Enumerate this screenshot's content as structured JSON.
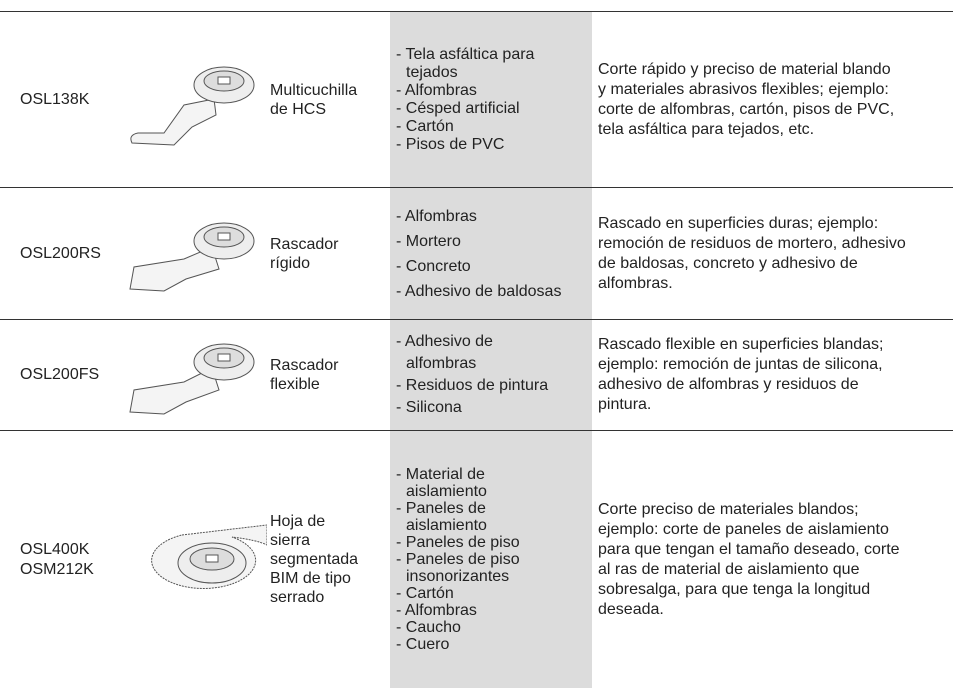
{
  "table": {
    "rows": [
      {
        "code": [
          "OSL138K"
        ],
        "name": [
          "Multicuchilla",
          "de HCS"
        ],
        "materials": [
          [
            "- Tela asfáltica para",
            "tejados"
          ],
          [
            "- Alfombras"
          ],
          [
            "- Césped artificial"
          ],
          [
            "- Cartón"
          ],
          [
            "- Pisos de PVC"
          ]
        ],
        "description": [
          "Corte rápido y preciso de material blando",
          "y materiales abrasivos flexibles; ejemplo:",
          "corte de alfombras, cartón, pisos de PVC,",
          "tela asfáltica para tejados, etc."
        ]
      },
      {
        "code": [
          "OSL200RS"
        ],
        "name": [
          "Rascador",
          "rígido"
        ],
        "materials": [
          [
            "- Alfombras"
          ],
          [
            "- Mortero"
          ],
          [
            "- Concreto"
          ],
          [
            "- Adhesivo de baldosas"
          ]
        ],
        "description": [
          "Rascado en superficies duras; ejemplo:",
          "remoción de residuos de mortero, adhesivo",
          "de baldosas, concreto y adhesivo de",
          "alfombras."
        ]
      },
      {
        "code": [
          "OSL200FS"
        ],
        "name": [
          "Rascador",
          "flexible"
        ],
        "materials": [
          [
            "- Adhesivo de",
            "alfombras"
          ],
          [
            "- Residuos de pintura"
          ],
          [
            "- Silicona"
          ]
        ],
        "description": [
          "Rascado flexible en superficies blandas;",
          "ejemplo: remoción de juntas de silicona,",
          "adhesivo de alfombras y residuos de",
          "pintura."
        ]
      },
      {
        "code": [
          "OSL400K",
          "OSM212K"
        ],
        "name": [
          "Hoja de",
          "sierra",
          "segmentada",
          "BIM de tipo",
          "serrado"
        ],
        "materials": [
          [
            "- Material de",
            "aislamiento"
          ],
          [
            "- Paneles de",
            "aislamiento"
          ],
          [
            "- Paneles de piso"
          ],
          [
            "- Paneles de piso",
            "insonorizantes"
          ],
          [
            "- Cartón"
          ],
          [
            "- Alfombras"
          ],
          [
            "- Caucho"
          ],
          [
            "- Cuero"
          ]
        ],
        "description": [
          "Corte preciso de materiales blandos;",
          "ejemplo: corte de paneles de aislamiento",
          "para que tengan el tamaño deseado, corte",
          "al ras de material de aislamiento que",
          "sobresalga, para que tenga la longitud",
          "deseada."
        ]
      }
    ]
  }
}
